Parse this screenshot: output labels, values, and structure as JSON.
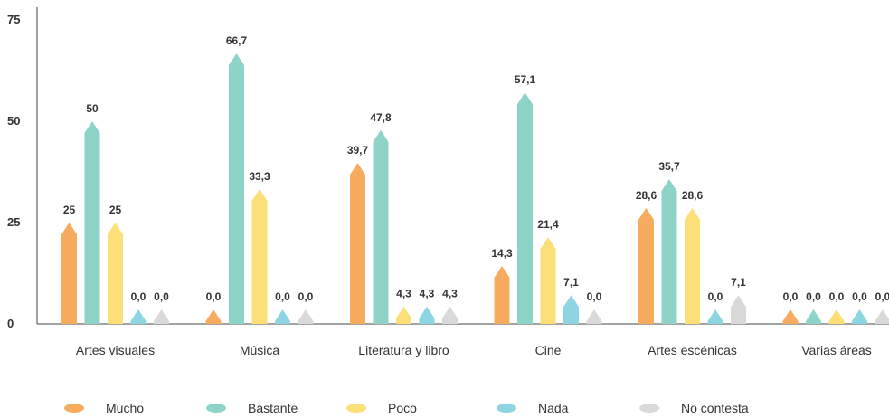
{
  "chart_data": {
    "type": "bar",
    "title": "",
    "xlabel": "",
    "ylabel": "",
    "ylim": [
      0,
      75
    ],
    "yticks": [
      0,
      25,
      50,
      75
    ],
    "ytick_labels": [
      "0",
      "25",
      "50",
      "75"
    ],
    "grid": false,
    "legend_position": "bottom",
    "categories": [
      "Artes visuales",
      "Música",
      "Literatura y libro",
      "Cine",
      "Artes escénicas",
      "Varias áreas"
    ],
    "series": [
      {
        "name": "Mucho",
        "color": "#F7AB5E",
        "values": [
          25,
          0,
          39.7,
          14.3,
          28.6,
          0
        ],
        "labels": [
          "25",
          "0,0",
          "39,7",
          "14,3",
          "28,6",
          "0,0"
        ]
      },
      {
        "name": "Bastante",
        "color": "#8ED3C8",
        "values": [
          50,
          66.7,
          47.8,
          57.1,
          35.7,
          0
        ],
        "labels": [
          "50",
          "66,7",
          "47,8",
          "57,1",
          "35,7",
          "0,0"
        ]
      },
      {
        "name": "Poco",
        "color": "#FCDF76",
        "values": [
          25,
          33.3,
          4.3,
          21.4,
          28.6,
          0
        ],
        "labels": [
          "25",
          "33,3",
          "4,3",
          "21,4",
          "28,6",
          "0,0"
        ]
      },
      {
        "name": "Nada",
        "color": "#8DD5E3",
        "values": [
          0,
          0,
          4.3,
          7.1,
          0,
          0
        ],
        "labels": [
          "0,0",
          "0,0",
          "4,3",
          "7,1",
          "0,0",
          "0,0"
        ]
      },
      {
        "name": "No contesta",
        "color": "#D9D9D9",
        "values": [
          0,
          0,
          4.3,
          0,
          7.1,
          0
        ],
        "labels": [
          "0,0",
          "0,0",
          "4,3",
          "0,0",
          "7,1",
          "0,0"
        ]
      }
    ]
  }
}
